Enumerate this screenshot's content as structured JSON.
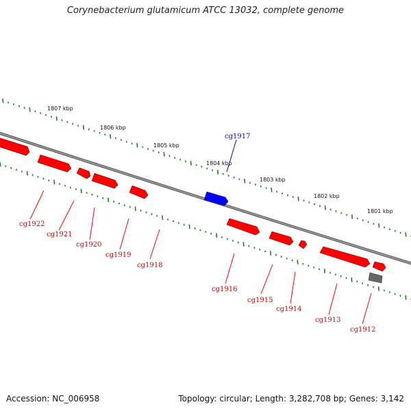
{
  "title": "Corynebacterium glutamicum ATCC 13032, complete genome",
  "footer": {
    "accession": "Accession: NC_006958",
    "topology": "Topology: circular; Length: 3,282,708 bp; Genes: 3,142"
  },
  "colors": {
    "reverse_gene": "#ff0000",
    "forward_gene": "#0000ff",
    "other_feature": "#666666",
    "backbone": "#888888",
    "ticks": "#1a7f1a"
  },
  "kbp_labels": [
    "1807 kbp",
    "1806 kbp",
    "1805 kbp",
    "1804 kbp",
    "1803 kbp",
    "1802 kbp",
    "1801 kbp"
  ],
  "genes": [
    {
      "name": "cg1922",
      "strand": "reverse"
    },
    {
      "name": "cg1921",
      "strand": "reverse"
    },
    {
      "name": "cg1920",
      "strand": "reverse"
    },
    {
      "name": "cg1919",
      "strand": "reverse"
    },
    {
      "name": "cg1918",
      "strand": "reverse"
    },
    {
      "name": "cg1917",
      "strand": "forward"
    },
    {
      "name": "cg1916",
      "strand": "reverse"
    },
    {
      "name": "cg1915",
      "strand": "reverse"
    },
    {
      "name": "cg1914",
      "strand": "reverse"
    },
    {
      "name": "cg1913",
      "strand": "reverse"
    },
    {
      "name": "cg1912",
      "strand": "reverse"
    }
  ],
  "other_features": [
    {
      "strand": "reverse"
    }
  ]
}
